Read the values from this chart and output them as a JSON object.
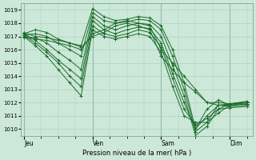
{
  "xlabel": "Pression niveau de la mer( hPa )",
  "bg_color": "#cce8d8",
  "grid_color": "#aacbbb",
  "line_color": "#1a6b2a",
  "ylim": [
    1009.5,
    1019.5
  ],
  "yticks": [
    1010,
    1011,
    1012,
    1013,
    1014,
    1015,
    1016,
    1017,
    1018,
    1019
  ],
  "xtick_labels": [
    "Jeu",
    "Ven",
    "Sam",
    "Dim"
  ],
  "xtick_positions": [
    0,
    24,
    48,
    72
  ],
  "xlim": [
    -1,
    80
  ],
  "lines": [
    [
      0,
      1017.2,
      4,
      1017.5,
      8,
      1017.3,
      12,
      1016.8,
      16,
      1016.5,
      20,
      1016.3,
      24,
      1019.1,
      28,
      1018.5,
      32,
      1018.2,
      36,
      1018.3,
      40,
      1018.5,
      44,
      1018.4,
      48,
      1017.8,
      52,
      1016.0,
      56,
      1013.5,
      60,
      1010.0,
      64,
      1011.5,
      68,
      1012.2,
      72,
      1011.8,
      78,
      1011.9
    ],
    [
      0,
      1017.1,
      4,
      1017.2,
      8,
      1017.0,
      12,
      1016.5,
      16,
      1016.0,
      20,
      1015.5,
      24,
      1018.8,
      28,
      1018.2,
      32,
      1018.0,
      36,
      1018.1,
      40,
      1018.3,
      44,
      1018.2,
      48,
      1017.5,
      52,
      1015.5,
      56,
      1013.0,
      60,
      1009.8,
      64,
      1010.5,
      68,
      1011.8,
      72,
      1011.7,
      78,
      1011.8
    ],
    [
      0,
      1017.0,
      4,
      1016.9,
      8,
      1016.5,
      12,
      1015.8,
      16,
      1015.2,
      20,
      1014.5,
      24,
      1018.5,
      28,
      1017.8,
      32,
      1017.5,
      36,
      1017.8,
      40,
      1018.0,
      44,
      1017.9,
      48,
      1017.0,
      52,
      1014.8,
      56,
      1012.5,
      60,
      1009.5,
      64,
      1010.2,
      68,
      1011.5,
      72,
      1011.6,
      78,
      1011.7
    ],
    [
      0,
      1017.2,
      4,
      1016.7,
      8,
      1016.0,
      12,
      1015.2,
      16,
      1014.5,
      20,
      1013.8,
      24,
      1018.2,
      28,
      1017.5,
      32,
      1017.2,
      36,
      1017.5,
      40,
      1017.7,
      44,
      1017.6,
      48,
      1016.5,
      52,
      1014.2,
      56,
      1012.0,
      60,
      1010.0,
      64,
      1011.0,
      68,
      1011.8,
      72,
      1011.9,
      78,
      1012.0
    ],
    [
      0,
      1017.1,
      4,
      1016.5,
      8,
      1015.8,
      12,
      1015.0,
      16,
      1014.0,
      20,
      1013.2,
      24,
      1017.8,
      28,
      1017.2,
      32,
      1017.0,
      36,
      1017.2,
      40,
      1017.5,
      44,
      1017.3,
      48,
      1016.2,
      52,
      1013.8,
      56,
      1011.5,
      60,
      1010.3,
      64,
      1010.8,
      68,
      1011.5,
      72,
      1011.9,
      78,
      1012.0
    ],
    [
      0,
      1017.0,
      4,
      1016.3,
      8,
      1015.5,
      12,
      1014.5,
      16,
      1013.5,
      20,
      1012.5,
      24,
      1017.5,
      28,
      1017.0,
      32,
      1016.8,
      36,
      1017.0,
      40,
      1017.2,
      44,
      1017.0,
      48,
      1015.8,
      52,
      1013.2,
      56,
      1011.0,
      60,
      1010.5,
      64,
      1010.5,
      68,
      1011.2,
      72,
      1011.8,
      78,
      1011.9
    ],
    [
      0,
      1016.9,
      4,
      1016.8,
      8,
      1016.7,
      12,
      1016.5,
      16,
      1016.3,
      20,
      1016.0,
      24,
      1017.2,
      28,
      1017.5,
      32,
      1018.0,
      36,
      1018.2,
      40,
      1018.0,
      44,
      1017.8,
      48,
      1016.0,
      52,
      1015.0,
      56,
      1014.0,
      60,
      1013.0,
      64,
      1012.0,
      68,
      1012.0,
      72,
      1011.9,
      78,
      1012.1
    ],
    [
      0,
      1017.3,
      4,
      1017.0,
      8,
      1016.9,
      12,
      1016.7,
      16,
      1016.5,
      20,
      1016.2,
      24,
      1017.0,
      28,
      1017.3,
      32,
      1017.8,
      36,
      1018.0,
      40,
      1017.8,
      44,
      1017.5,
      48,
      1015.5,
      52,
      1014.5,
      56,
      1013.5,
      60,
      1012.8,
      64,
      1012.0,
      68,
      1011.8,
      72,
      1011.8,
      78,
      1012.0
    ]
  ]
}
